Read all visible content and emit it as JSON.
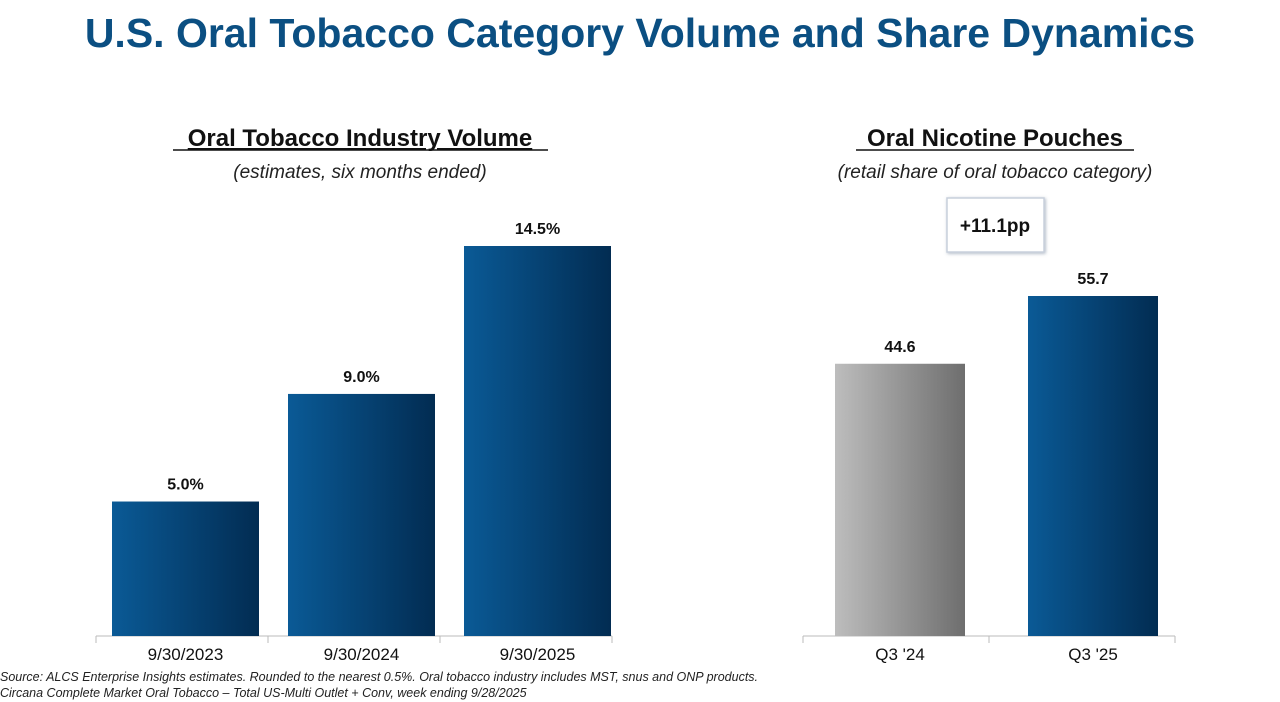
{
  "title": "U.S. Oral Tobacco Category Volume and Share Dynamics",
  "chart_data": [
    {
      "type": "bar",
      "title": "Oral Tobacco Industry Volume",
      "subtitle": "(estimates, six months ended)",
      "categories": [
        "9/30/2023",
        "9/30/2024",
        "9/30/2025"
      ],
      "values": [
        5.0,
        9.0,
        14.5
      ],
      "data_labels": [
        "5.0%",
        "9.0%",
        "14.5%"
      ],
      "colors": [
        "#0a5a96",
        "#0a5a96",
        "#0a5a96"
      ],
      "ylim": [
        0,
        14.5
      ],
      "grid": false
    },
    {
      "type": "bar",
      "title": "Oral Nicotine Pouches",
      "subtitle": "(retail share of oral tobacco category)",
      "categories": [
        "Q3 '24",
        "Q3 '25"
      ],
      "values": [
        44.6,
        55.7
      ],
      "data_labels": [
        "44.6",
        "55.7"
      ],
      "colors": [
        "#9a9a9a",
        "#0a5a96"
      ],
      "annotation": "+11.1pp",
      "ylim": [
        0,
        55.7
      ],
      "grid": false
    }
  ],
  "footnotes": [
    "Source: ALCS Enterprise Insights estimates. Rounded to the nearest 0.5%. Oral tobacco industry includes MST, snus and ONP products.",
    "Circana Complete Market Oral Tobacco – Total US-Multi Outlet + Conv, week ending 9/28/2025"
  ]
}
